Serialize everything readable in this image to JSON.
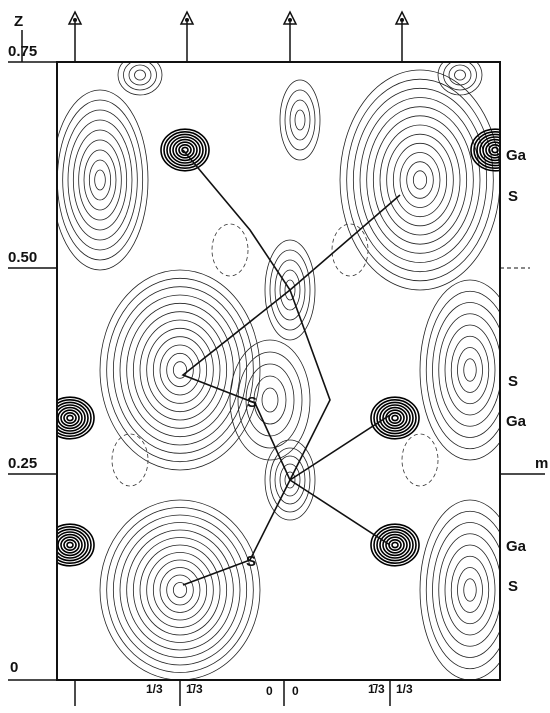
{
  "z_axis": {
    "label": "Z",
    "ticks": [
      "0.75",
      "0.50",
      "0.25",
      "0"
    ]
  },
  "atom_labels": [
    "Ga",
    "S",
    "S",
    "Ga",
    "Ga",
    "S"
  ],
  "mirror_label": "m",
  "map_labels": [
    "S",
    "S"
  ],
  "bottom_labels": [
    "1/3",
    "1̄/3",
    "0",
    "0",
    "1̄/3",
    "1/3"
  ]
}
